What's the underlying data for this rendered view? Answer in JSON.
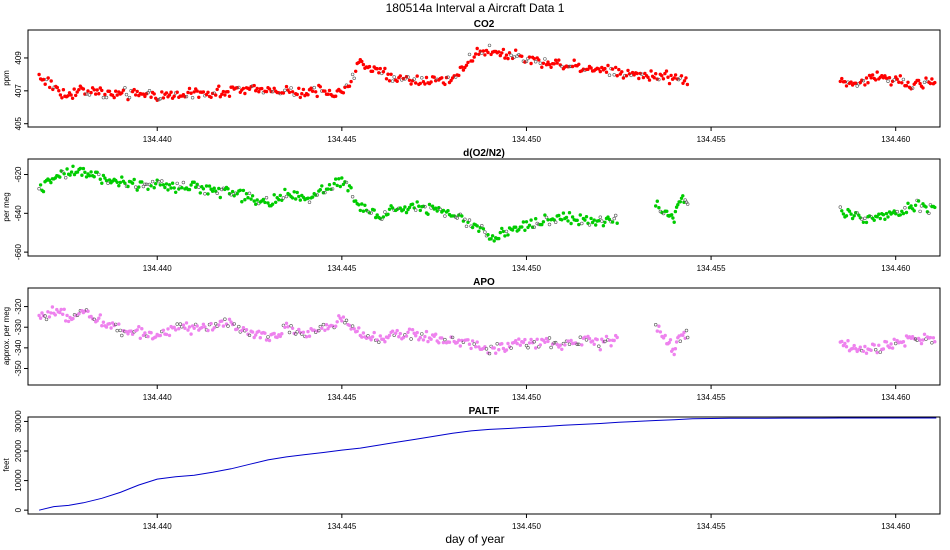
{
  "figure": {
    "title": "180514a   Interval a Aircraft Data 1",
    "xlabel": "day of year"
  },
  "chart_data": [
    {
      "type": "scatter",
      "title": "CO2",
      "ylabel": "ppm",
      "color": "#ff0000",
      "xlim": [
        134.4365,
        134.4612
      ],
      "ylim": [
        404.8,
        410.7
      ],
      "x_ticks": [
        "134.440",
        "134.445",
        "134.450",
        "134.455",
        "134.460"
      ],
      "y_ticks": [
        "405",
        "407",
        "409"
      ],
      "segments": [
        {
          "x": [
            134.4368,
            134.4375,
            134.438,
            134.439,
            134.44,
            134.441,
            134.442,
            134.443,
            134.444,
            134.4445,
            134.445,
            134.4455,
            134.446,
            134.447,
            134.448,
            134.4485,
            134.449,
            134.45,
            134.451,
            134.452,
            134.453,
            134.454,
            134.4544
          ],
          "y": [
            407.9,
            406.8,
            407.0,
            406.8,
            406.7,
            406.8,
            407.0,
            407.1,
            406.9,
            407.0,
            406.9,
            408.7,
            408.1,
            407.6,
            407.6,
            409.1,
            409.5,
            408.9,
            408.6,
            408.3,
            408.0,
            407.8,
            407.7
          ]
        },
        {
          "x": [
            134.4585,
            134.459,
            134.4595,
            134.46,
            134.4605,
            134.4611
          ],
          "y": [
            407.5,
            407.4,
            407.9,
            407.7,
            407.3,
            407.6
          ]
        }
      ]
    },
    {
      "type": "scatter",
      "title": "d(O2/N2)",
      "ylabel": "per meg",
      "color": "#00cc00",
      "xlim": [
        134.4365,
        134.4612
      ],
      "ylim": [
        -662,
        -612
      ],
      "x_ticks": [
        "134.440",
        "134.445",
        "134.450",
        "134.455",
        "134.460"
      ],
      "y_ticks": [
        "-620",
        "-640",
        "-660"
      ],
      "segments": [
        {
          "x": [
            134.4368,
            134.4372,
            134.4376,
            134.438,
            134.4385,
            134.439,
            134.4395,
            134.44,
            134.4405,
            134.441,
            134.4415,
            134.442,
            134.4425,
            134.443,
            134.4435,
            134.444,
            134.4445,
            134.445,
            134.4455,
            134.446,
            134.4465,
            134.447,
            134.4475,
            134.448,
            134.4485,
            134.449,
            134.4495,
            134.45,
            134.4505,
            134.451,
            134.4515,
            134.452,
            134.4525
          ],
          "y": [
            -628,
            -622,
            -619,
            -618,
            -622,
            -624,
            -625,
            -626,
            -627,
            -626,
            -628,
            -629,
            -632,
            -635,
            -630,
            -632,
            -628,
            -623,
            -636,
            -641,
            -637,
            -637,
            -638,
            -641,
            -645,
            -652,
            -650,
            -646,
            -643,
            -642,
            -644,
            -645,
            -643
          ]
        },
        {
          "x": [
            134.4535,
            134.4538,
            134.454,
            134.4542,
            134.4544
          ],
          "y": [
            -636,
            -640,
            -644,
            -630,
            -638
          ]
        },
        {
          "x": [
            134.4585,
            134.459,
            134.4595,
            134.46,
            134.4605,
            134.4611
          ],
          "y": [
            -638,
            -643,
            -642,
            -641,
            -636,
            -638
          ]
        }
      ]
    },
    {
      "type": "scatter",
      "title": "APO",
      "ylabel": "approx. per meg",
      "color": "#ee82ee",
      "xlim": [
        134.4365,
        134.4612
      ],
      "ylim": [
        -358,
        -311
      ],
      "x_ticks": [
        "134.440",
        "134.445",
        "134.450",
        "134.455",
        "134.460"
      ],
      "y_ticks": [
        "-320",
        "-330",
        "-340",
        "-350"
      ],
      "segments": [
        {
          "x": [
            134.4368,
            134.4372,
            134.4376,
            134.438,
            134.4385,
            134.439,
            134.4395,
            134.44,
            134.4405,
            134.441,
            134.4415,
            134.442,
            134.4425,
            134.443,
            134.4435,
            134.444,
            134.4445,
            134.445,
            134.4455,
            134.446,
            134.4465,
            134.447,
            134.4475,
            134.448,
            134.4485,
            134.449,
            134.4495,
            134.45,
            134.4505,
            134.451,
            134.4515,
            134.452,
            134.4525
          ],
          "y": [
            -326,
            -323,
            -325,
            -322,
            -327,
            -331,
            -332,
            -335,
            -329,
            -331,
            -330,
            -328,
            -333,
            -335,
            -331,
            -334,
            -330,
            -326,
            -334,
            -336,
            -333,
            -334,
            -335,
            -337,
            -338,
            -341,
            -339,
            -338,
            -337,
            -339,
            -336,
            -338,
            -335
          ]
        },
        {
          "x": [
            134.4535,
            134.4538,
            134.454,
            134.4542,
            134.4544
          ],
          "y": [
            -330,
            -336,
            -341,
            -333,
            -334
          ]
        },
        {
          "x": [
            134.4585,
            134.459,
            134.4595,
            134.46,
            134.4605,
            134.4611
          ],
          "y": [
            -338,
            -341,
            -341,
            -338,
            -336,
            -336
          ]
        }
      ]
    },
    {
      "type": "line",
      "title": "PALTF",
      "ylabel": "feet",
      "color": "#0000cc",
      "xlim": [
        134.4365,
        134.4612
      ],
      "ylim": [
        -1300,
        31500
      ],
      "x_ticks": [
        "134.440",
        "134.445",
        "134.450",
        "134.455",
        "134.460"
      ],
      "y_ticks": [
        "0",
        "10000",
        "20000",
        "30000"
      ],
      "x": [
        134.4368,
        134.4372,
        134.4376,
        134.438,
        134.4385,
        134.439,
        134.4395,
        134.44,
        134.4405,
        134.441,
        134.4415,
        134.442,
        134.4425,
        134.443,
        134.4435,
        134.444,
        134.4445,
        134.445,
        134.4455,
        134.446,
        134.4465,
        134.447,
        134.4475,
        134.448,
        134.4485,
        134.449,
        134.4495,
        134.45,
        134.4505,
        134.451,
        134.4515,
        134.452,
        134.4525,
        134.453,
        134.4535,
        134.454,
        134.4545,
        134.455,
        134.4555,
        134.456,
        134.4565,
        134.457,
        134.4575,
        134.458,
        134.4585,
        134.459,
        134.4595,
        134.46,
        134.4605,
        134.4611
      ],
      "y": [
        0,
        1200,
        1600,
        2500,
        4000,
        6000,
        8500,
        10500,
        11300,
        11800,
        12800,
        14000,
        15500,
        17000,
        18000,
        18800,
        19500,
        20300,
        21000,
        22000,
        23000,
        24000,
        25000,
        26000,
        26800,
        27300,
        27600,
        28000,
        28300,
        28700,
        29000,
        29300,
        29700,
        30000,
        30300,
        30600,
        30900,
        31000,
        31050,
        31080,
        31100,
        31120,
        31130,
        31140,
        31150,
        31150,
        31150,
        31150,
        31150,
        31150
      ]
    }
  ]
}
